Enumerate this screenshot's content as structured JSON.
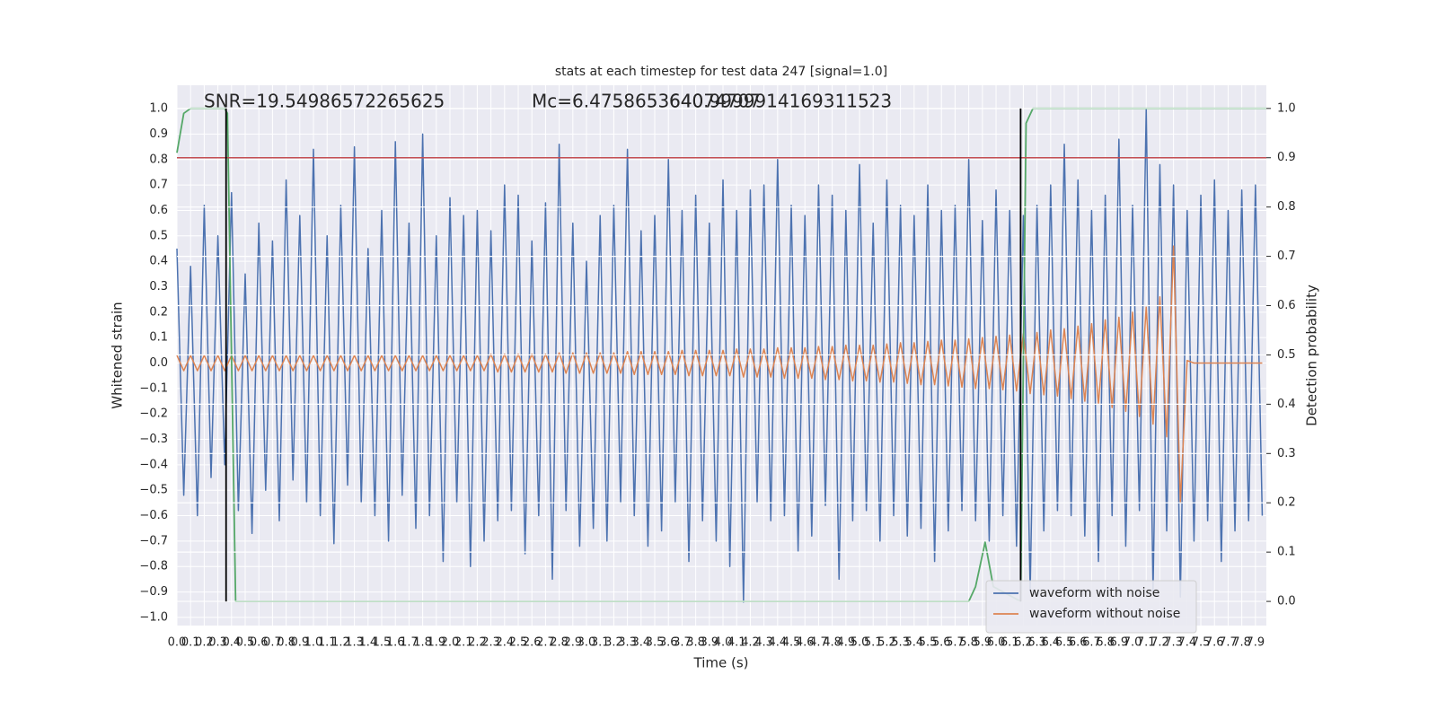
{
  "chart_data": {
    "type": "line",
    "title": "stats at each timestep for test data 247 [signal=1.0]",
    "xlabel": "Time (s)",
    "ylabel": "Whitened strain",
    "y2label": "Detection probability",
    "annotations": [
      "SNR=19.54986572265625",
      "Mc=6.475865364074707",
      "640.9999914169311523"
    ],
    "xlim": [
      0,
      7.98
    ],
    "ylim": [
      -1.032,
      1.092
    ],
    "y2lim": [
      -0.049,
      1.047
    ],
    "grid": true,
    "legend": "lower right",
    "threshold_y2": 0.9,
    "threshold_color": "#c44e52",
    "vlines": [
      0.36,
      6.18
    ],
    "vline_color": "#000000",
    "xticks": [
      {
        "value": 0,
        "label": "0.0"
      },
      0.1,
      0.2,
      0.3,
      0.4,
      0.5,
      0.6,
      0.7,
      0.8,
      0.9,
      {
        "value": 1,
        "label": "1.0"
      },
      1.1,
      1.2,
      1.3,
      1.4,
      1.5,
      1.6,
      1.7,
      1.8,
      1.9,
      {
        "value": 2,
        "label": "2.0"
      },
      2.1,
      2.2,
      2.3,
      2.4,
      2.5,
      2.6,
      2.7,
      2.8,
      2.9,
      {
        "value": 3,
        "label": "3.0"
      },
      3.1,
      3.2,
      3.3,
      3.4,
      3.5,
      3.6,
      3.7,
      3.8,
      3.9,
      {
        "value": 4,
        "label": "4.0"
      },
      4.1,
      4.2,
      4.3,
      4.4,
      4.5,
      4.6,
      4.7,
      4.8,
      4.9,
      {
        "value": 5,
        "label": "5.0"
      },
      5.1,
      5.2,
      5.3,
      5.4,
      5.5,
      5.6,
      5.7,
      5.8,
      5.9,
      {
        "value": 6,
        "label": "6.0"
      },
      6.1,
      6.2,
      6.3,
      6.4,
      6.5,
      6.6,
      6.7,
      6.8,
      6.9,
      {
        "value": 7,
        "label": "7.0"
      },
      7.1,
      7.2,
      7.3,
      7.4,
      7.5,
      7.6,
      7.7,
      7.8,
      7.9
    ],
    "yticks": [
      {
        "value": -1,
        "label": "−1.0"
      },
      {
        "value": -0.9,
        "label": "−0.9"
      },
      {
        "value": -0.8,
        "label": "−0.8"
      },
      {
        "value": -0.7,
        "label": "−0.7"
      },
      {
        "value": -0.6,
        "label": "−0.6"
      },
      {
        "value": -0.5,
        "label": "−0.5"
      },
      {
        "value": -0.4,
        "label": "−0.4"
      },
      {
        "value": -0.3,
        "label": "−0.3"
      },
      {
        "value": -0.2,
        "label": "−0.2"
      },
      {
        "value": -0.1,
        "label": "−0.1"
      },
      {
        "value": 0,
        "label": "0.0"
      },
      0.1,
      0.2,
      0.3,
      0.4,
      0.5,
      0.6,
      0.7,
      0.8,
      0.9,
      {
        "value": 1,
        "label": "1.0"
      }
    ],
    "y2ticks": [
      {
        "value": 0,
        "label": "0.0"
      },
      0.1,
      0.2,
      0.3,
      0.4,
      0.5,
      0.6,
      0.7,
      0.8,
      0.9,
      {
        "value": 1,
        "label": "1.0"
      }
    ],
    "x": [
      0,
      0.05,
      0.1,
      0.15,
      0.2,
      0.25,
      0.3,
      0.35,
      0.4,
      0.45,
      0.5,
      0.55,
      0.6,
      0.65,
      0.7,
      0.75,
      0.8,
      0.85,
      0.9,
      0.95,
      1,
      1.05,
      1.1,
      1.15,
      1.2,
      1.25,
      1.3,
      1.35,
      1.4,
      1.45,
      1.5,
      1.55,
      1.6,
      1.65,
      1.7,
      1.75,
      1.8,
      1.85,
      1.9,
      1.95,
      2,
      2.05,
      2.1,
      2.15,
      2.2,
      2.25,
      2.3,
      2.35,
      2.4,
      2.45,
      2.5,
      2.55,
      2.6,
      2.65,
      2.7,
      2.75,
      2.8,
      2.85,
      2.9,
      2.95,
      3,
      3.05,
      3.1,
      3.15,
      3.2,
      3.25,
      3.3,
      3.35,
      3.4,
      3.45,
      3.5,
      3.55,
      3.6,
      3.65,
      3.7,
      3.75,
      3.8,
      3.85,
      3.9,
      3.95,
      4,
      4.05,
      4.1,
      4.15,
      4.2,
      4.25,
      4.3,
      4.35,
      4.4,
      4.45,
      4.5,
      4.55,
      4.6,
      4.65,
      4.7,
      4.75,
      4.8,
      4.85,
      4.9,
      4.95,
      5,
      5.05,
      5.1,
      5.15,
      5.2,
      5.25,
      5.3,
      5.35,
      5.4,
      5.45,
      5.5,
      5.55,
      5.6,
      5.65,
      5.7,
      5.75,
      5.8,
      5.85,
      5.9,
      5.95,
      6,
      6.05,
      6.1,
      6.15,
      6.2,
      6.25,
      6.3,
      6.35,
      6.4,
      6.45,
      6.5,
      6.55,
      6.6,
      6.65,
      6.7,
      6.75,
      6.8,
      6.85,
      6.9,
      6.95,
      7,
      7.05,
      7.1,
      7.15,
      7.2,
      7.25,
      7.3,
      7.35,
      7.4,
      7.45,
      7.5,
      7.55,
      7.6,
      7.65,
      7.7,
      7.75,
      7.8,
      7.85,
      7.9,
      7.95
    ],
    "series": [
      {
        "name": "waveform with noise",
        "color": "#4c72b0",
        "values": [
          0.45,
          -0.52,
          0.38,
          -0.6,
          0.62,
          -0.45,
          0.5,
          -0.4,
          0.67,
          -0.58,
          0.35,
          -0.67,
          0.55,
          -0.5,
          0.48,
          -0.62,
          0.72,
          -0.46,
          0.58,
          -0.55,
          0.84,
          -0.6,
          0.5,
          -0.71,
          0.62,
          -0.48,
          0.85,
          -0.55,
          0.45,
          -0.6,
          0.6,
          -0.7,
          0.87,
          -0.52,
          0.55,
          -0.65,
          0.9,
          -0.6,
          0.5,
          -0.78,
          0.65,
          -0.55,
          0.58,
          -0.8,
          0.6,
          -0.7,
          0.52,
          -0.62,
          0.7,
          -0.58,
          0.66,
          -0.75,
          0.48,
          -0.6,
          0.63,
          -0.85,
          0.86,
          -0.58,
          0.55,
          -0.72,
          0.4,
          -0.65,
          0.58,
          -0.7,
          0.62,
          -0.55,
          0.84,
          -0.6,
          0.52,
          -0.72,
          0.58,
          -0.66,
          0.8,
          -0.55,
          0.6,
          -0.78,
          0.66,
          -0.62,
          0.55,
          -0.7,
          0.72,
          -0.8,
          0.6,
          -0.94,
          0.68,
          -0.55,
          0.7,
          -0.62,
          0.8,
          -0.6,
          0.62,
          -0.74,
          0.58,
          -0.68,
          0.7,
          -0.56,
          0.66,
          -0.85,
          0.6,
          -0.62,
          0.78,
          -0.58,
          0.55,
          -0.7,
          0.72,
          -0.6,
          0.62,
          -0.68,
          0.58,
          -0.65,
          0.7,
          -0.78,
          0.6,
          -0.66,
          0.62,
          -0.58,
          0.8,
          -0.62,
          0.56,
          -0.7,
          0.68,
          -0.6,
          0.6,
          -0.72,
          0.58,
          -0.9,
          0.62,
          -0.66,
          0.7,
          -0.58,
          0.86,
          -0.6,
          0.72,
          -0.68,
          0.6,
          -0.78,
          0.66,
          -0.6,
          0.88,
          -0.72,
          0.62,
          -0.58,
          1.0,
          -0.9,
          0.78,
          -0.66,
          0.7,
          -0.92,
          0.6,
          -0.7,
          0.66,
          -0.62,
          0.72,
          -0.78,
          0.6,
          -0.66,
          0.68,
          -0.62,
          0.7,
          -0.6
        ]
      },
      {
        "name": "waveform without noise",
        "color": "#dd8452",
        "values": [
          0.03,
          -0.03,
          0.03,
          -0.03,
          0.03,
          -0.03,
          0.03,
          -0.03,
          0.03,
          -0.03,
          0.03,
          -0.03,
          0.03,
          -0.03,
          0.03,
          -0.03,
          0.03,
          -0.03,
          0.03,
          -0.03,
          0.03,
          -0.03,
          0.03,
          -0.03,
          0.03,
          -0.03,
          0.03,
          -0.03,
          0.03,
          -0.03,
          0.03,
          -0.03,
          0.03,
          -0.03,
          0.03,
          -0.03,
          0.03,
          -0.03,
          0.03,
          -0.03,
          0.03,
          -0.03,
          0.03,
          -0.03,
          0.03,
          -0.03,
          0.035,
          -0.035,
          0.035,
          -0.035,
          0.035,
          -0.035,
          0.035,
          -0.035,
          0.035,
          -0.035,
          0.04,
          -0.04,
          0.04,
          -0.04,
          0.04,
          -0.04,
          0.04,
          -0.04,
          0.04,
          -0.04,
          0.045,
          -0.045,
          0.045,
          -0.045,
          0.045,
          -0.045,
          0.045,
          -0.045,
          0.05,
          -0.05,
          0.05,
          -0.05,
          0.05,
          -0.05,
          0.05,
          -0.05,
          0.055,
          -0.055,
          0.055,
          -0.055,
          0.055,
          -0.055,
          0.06,
          -0.06,
          0.06,
          -0.06,
          0.06,
          -0.06,
          0.065,
          -0.065,
          0.065,
          -0.065,
          0.07,
          -0.07,
          0.07,
          -0.07,
          0.07,
          -0.075,
          0.075,
          -0.075,
          0.08,
          -0.08,
          0.08,
          -0.085,
          0.085,
          -0.085,
          0.09,
          -0.09,
          0.09,
          -0.095,
          0.095,
          -0.1,
          0.1,
          -0.1,
          0.105,
          -0.105,
          0.11,
          -0.11,
          0.115,
          -0.12,
          0.12,
          -0.125,
          0.13,
          -0.13,
          0.135,
          -0.14,
          0.145,
          -0.15,
          0.155,
          -0.16,
          0.17,
          -0.175,
          0.18,
          -0.19,
          0.2,
          -0.21,
          0.22,
          -0.24,
          0.26,
          -0.29,
          0.46,
          -0.55,
          0.01,
          0.0,
          0.0,
          0.0,
          0.0,
          0.0,
          0.0,
          0.0,
          0.0,
          0.0,
          0.0,
          0.0
        ]
      },
      {
        "color": "#55a868",
        "axis": "y2",
        "x": [
          0,
          0.05,
          0.1,
          0.35,
          0.37,
          0.43,
          5.8,
          5.85,
          5.92,
          5.98,
          6.18,
          6.22,
          6.27,
          7.98
        ],
        "values": [
          0.91,
          0.99,
          1.0,
          1.0,
          0.99,
          0.0,
          0.0,
          0.03,
          0.12,
          0.03,
          0.0,
          0.97,
          1.0,
          1.0
        ]
      }
    ]
  }
}
